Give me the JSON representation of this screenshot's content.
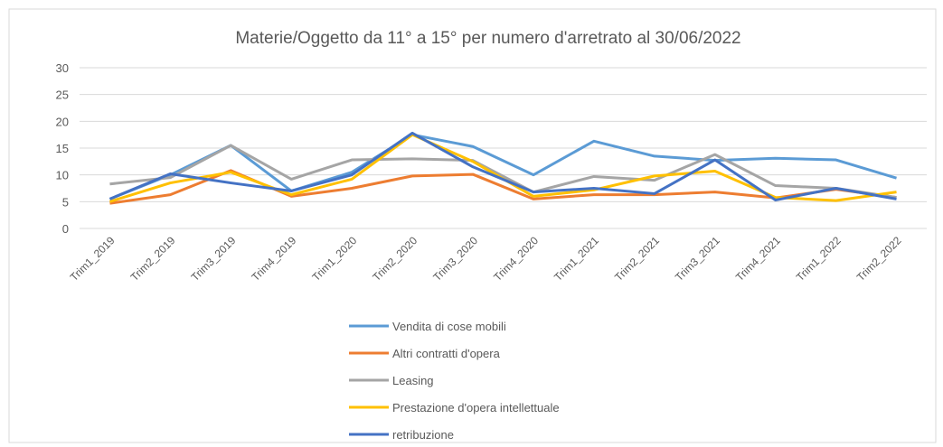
{
  "chart_data": {
    "type": "line",
    "title": "Materie/Oggetto da 11° a 15° per numero d'arretrato al 30/06/2022",
    "categories": [
      "Trim1_2019",
      "Trim2_2019",
      "Trim3_2019",
      "Trim4_2019",
      "Trim1_2020",
      "Trim2_2020",
      "Trim3_2020",
      "Trim4_2020",
      "Trim1_2021",
      "Trim2_2021",
      "Trim3_2021",
      "Trim4_2021",
      "Trim1_2022",
      "Trim2_2022"
    ],
    "series": [
      {
        "name": "Vendita di cose mobili",
        "color": "#5b9bd5",
        "values": [
          5.5,
          10,
          15.5,
          7,
          10.5,
          17.5,
          15.3,
          10,
          16.3,
          13.5,
          12.7,
          13.1,
          12.8,
          9.4
        ]
      },
      {
        "name": "Altri contratti d'opera",
        "color": "#ed7d31",
        "values": [
          4.7,
          6.3,
          10.8,
          6,
          7.5,
          9.8,
          10.1,
          5.5,
          6.3,
          6.3,
          6.8,
          5.7,
          7.3,
          5.8
        ]
      },
      {
        "name": "Leasing",
        "color": "#a5a5a5",
        "values": [
          8.3,
          9.5,
          15.5,
          9.2,
          12.8,
          13,
          12.7,
          6.8,
          9.7,
          9,
          13.8,
          8,
          7.5,
          5.8
        ]
      },
      {
        "name": "Prestazione d'opera intellettuale",
        "color": "#ffc000",
        "values": [
          5,
          8.5,
          10.5,
          6.3,
          9.2,
          17.5,
          12.5,
          6,
          7.2,
          9.8,
          10.7,
          5.8,
          5.2,
          6.8
        ]
      },
      {
        "name": "retribuzione",
        "color": "#4472c4",
        "values": [
          5.5,
          10.2,
          8.5,
          7,
          10,
          17.8,
          11.5,
          6.8,
          7.5,
          6.5,
          12.8,
          5.3,
          7.5,
          5.5
        ]
      }
    ],
    "ylim": [
      0,
      30
    ],
    "yticks": [
      0,
      5,
      10,
      15,
      20,
      25,
      30
    ],
    "grid": true,
    "legend": "bottom"
  }
}
